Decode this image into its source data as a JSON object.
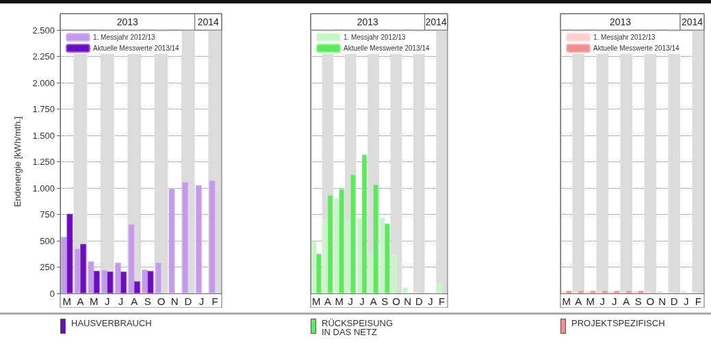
{
  "chart_data": [
    {
      "type": "bar",
      "title": "HAUSVERBRAUCH",
      "ylabel": "Endenergie [kWh/mth.]",
      "categories": [
        "M",
        "A",
        "M",
        "J",
        "J",
        "A",
        "S",
        "O",
        "N",
        "D",
        "J",
        "F"
      ],
      "annotations": [
        "2013",
        "2014"
      ],
      "series": [
        {
          "name": "1. Messjahr 2012/13",
          "color": "#c39be8",
          "values": [
            536,
            425,
            304,
            222,
            293,
            658,
            226,
            293,
            995,
            1057,
            1028,
            1073
          ]
        },
        {
          "name": "Aktuelle Messwerte 2013/14",
          "color": "#6a0dbd",
          "values": [
            756,
            470,
            215,
            208,
            208,
            115,
            213,
            null,
            null,
            null,
            null,
            null
          ]
        }
      ],
      "ylim": [
        0,
        2500
      ],
      "yticks": [
        {
          "value": 0,
          "label": "0"
        },
        {
          "value": 250,
          "label": "250"
        },
        {
          "value": 500,
          "label": "500"
        },
        {
          "value": 750,
          "label": "750"
        },
        {
          "value": 1000,
          "label": "1.000"
        },
        {
          "value": 1250,
          "label": "1.250"
        },
        {
          "value": 1500,
          "label": "1.500"
        },
        {
          "value": 1750,
          "label": "1.750"
        },
        {
          "value": 2000,
          "label": "2.000"
        },
        {
          "value": 2250,
          "label": "2.250"
        },
        {
          "value": 2500,
          "label": "2.500"
        }
      ],
      "grid": "y",
      "legend": "top left"
    },
    {
      "type": "bar",
      "title": "RÜCKSPEISUNG IN DAS NETZ",
      "categories": [
        "M",
        "A",
        "M",
        "J",
        "J",
        "A",
        "S",
        "O",
        "N",
        "D",
        "J",
        "F"
      ],
      "annotations": [
        "2013",
        "2014"
      ],
      "series": [
        {
          "name": "1. Messjahr 2012/13",
          "color": "#c8f5c8",
          "values": [
            492,
            703,
            906,
            691,
            718,
            381,
            718,
            370,
            55,
            15,
            15,
            95
          ]
        },
        {
          "name": "Aktuelle Messwerte 2013/14",
          "color": "#5ee85e",
          "values": [
            377,
            931,
            991,
            1128,
            1317,
            1033,
            663,
            null,
            null,
            null,
            null,
            null
          ]
        }
      ],
      "ylim": [
        0,
        2500
      ],
      "yticks": [
        0,
        250,
        500,
        750,
        1000,
        1250,
        1500,
        1750,
        2000,
        2250,
        2500
      ],
      "grid": "y",
      "legend": "top left",
      "tick_labels": "x"
    },
    {
      "type": "bar",
      "title": "PROJEKTSPEZIFISCH",
      "categories": [
        "M",
        "A",
        "M",
        "J",
        "J",
        "A",
        "S",
        "O",
        "N",
        "D",
        "J",
        "F"
      ],
      "annotations": [
        "2013",
        "2014"
      ],
      "series": [
        {
          "name": "1. Messjahr 2012/13",
          "color": "#fbd0d0",
          "values": [
            20,
            20,
            20,
            20,
            20,
            20,
            20,
            20,
            20,
            10,
            20,
            10
          ]
        },
        {
          "name": "Aktuelle Messwerte 2013/14",
          "color": "#f08f8f",
          "values": [
            25,
            25,
            25,
            25,
            25,
            25,
            25,
            null,
            null,
            null,
            null,
            null
          ]
        }
      ],
      "ylim": [
        0,
        2500
      ],
      "yticks": [
        0,
        250,
        500,
        750,
        1000,
        1250,
        1500,
        1750,
        2000,
        2250,
        2500
      ],
      "grid": "y",
      "legend": "top left",
      "tick_labels": "x"
    }
  ]
}
